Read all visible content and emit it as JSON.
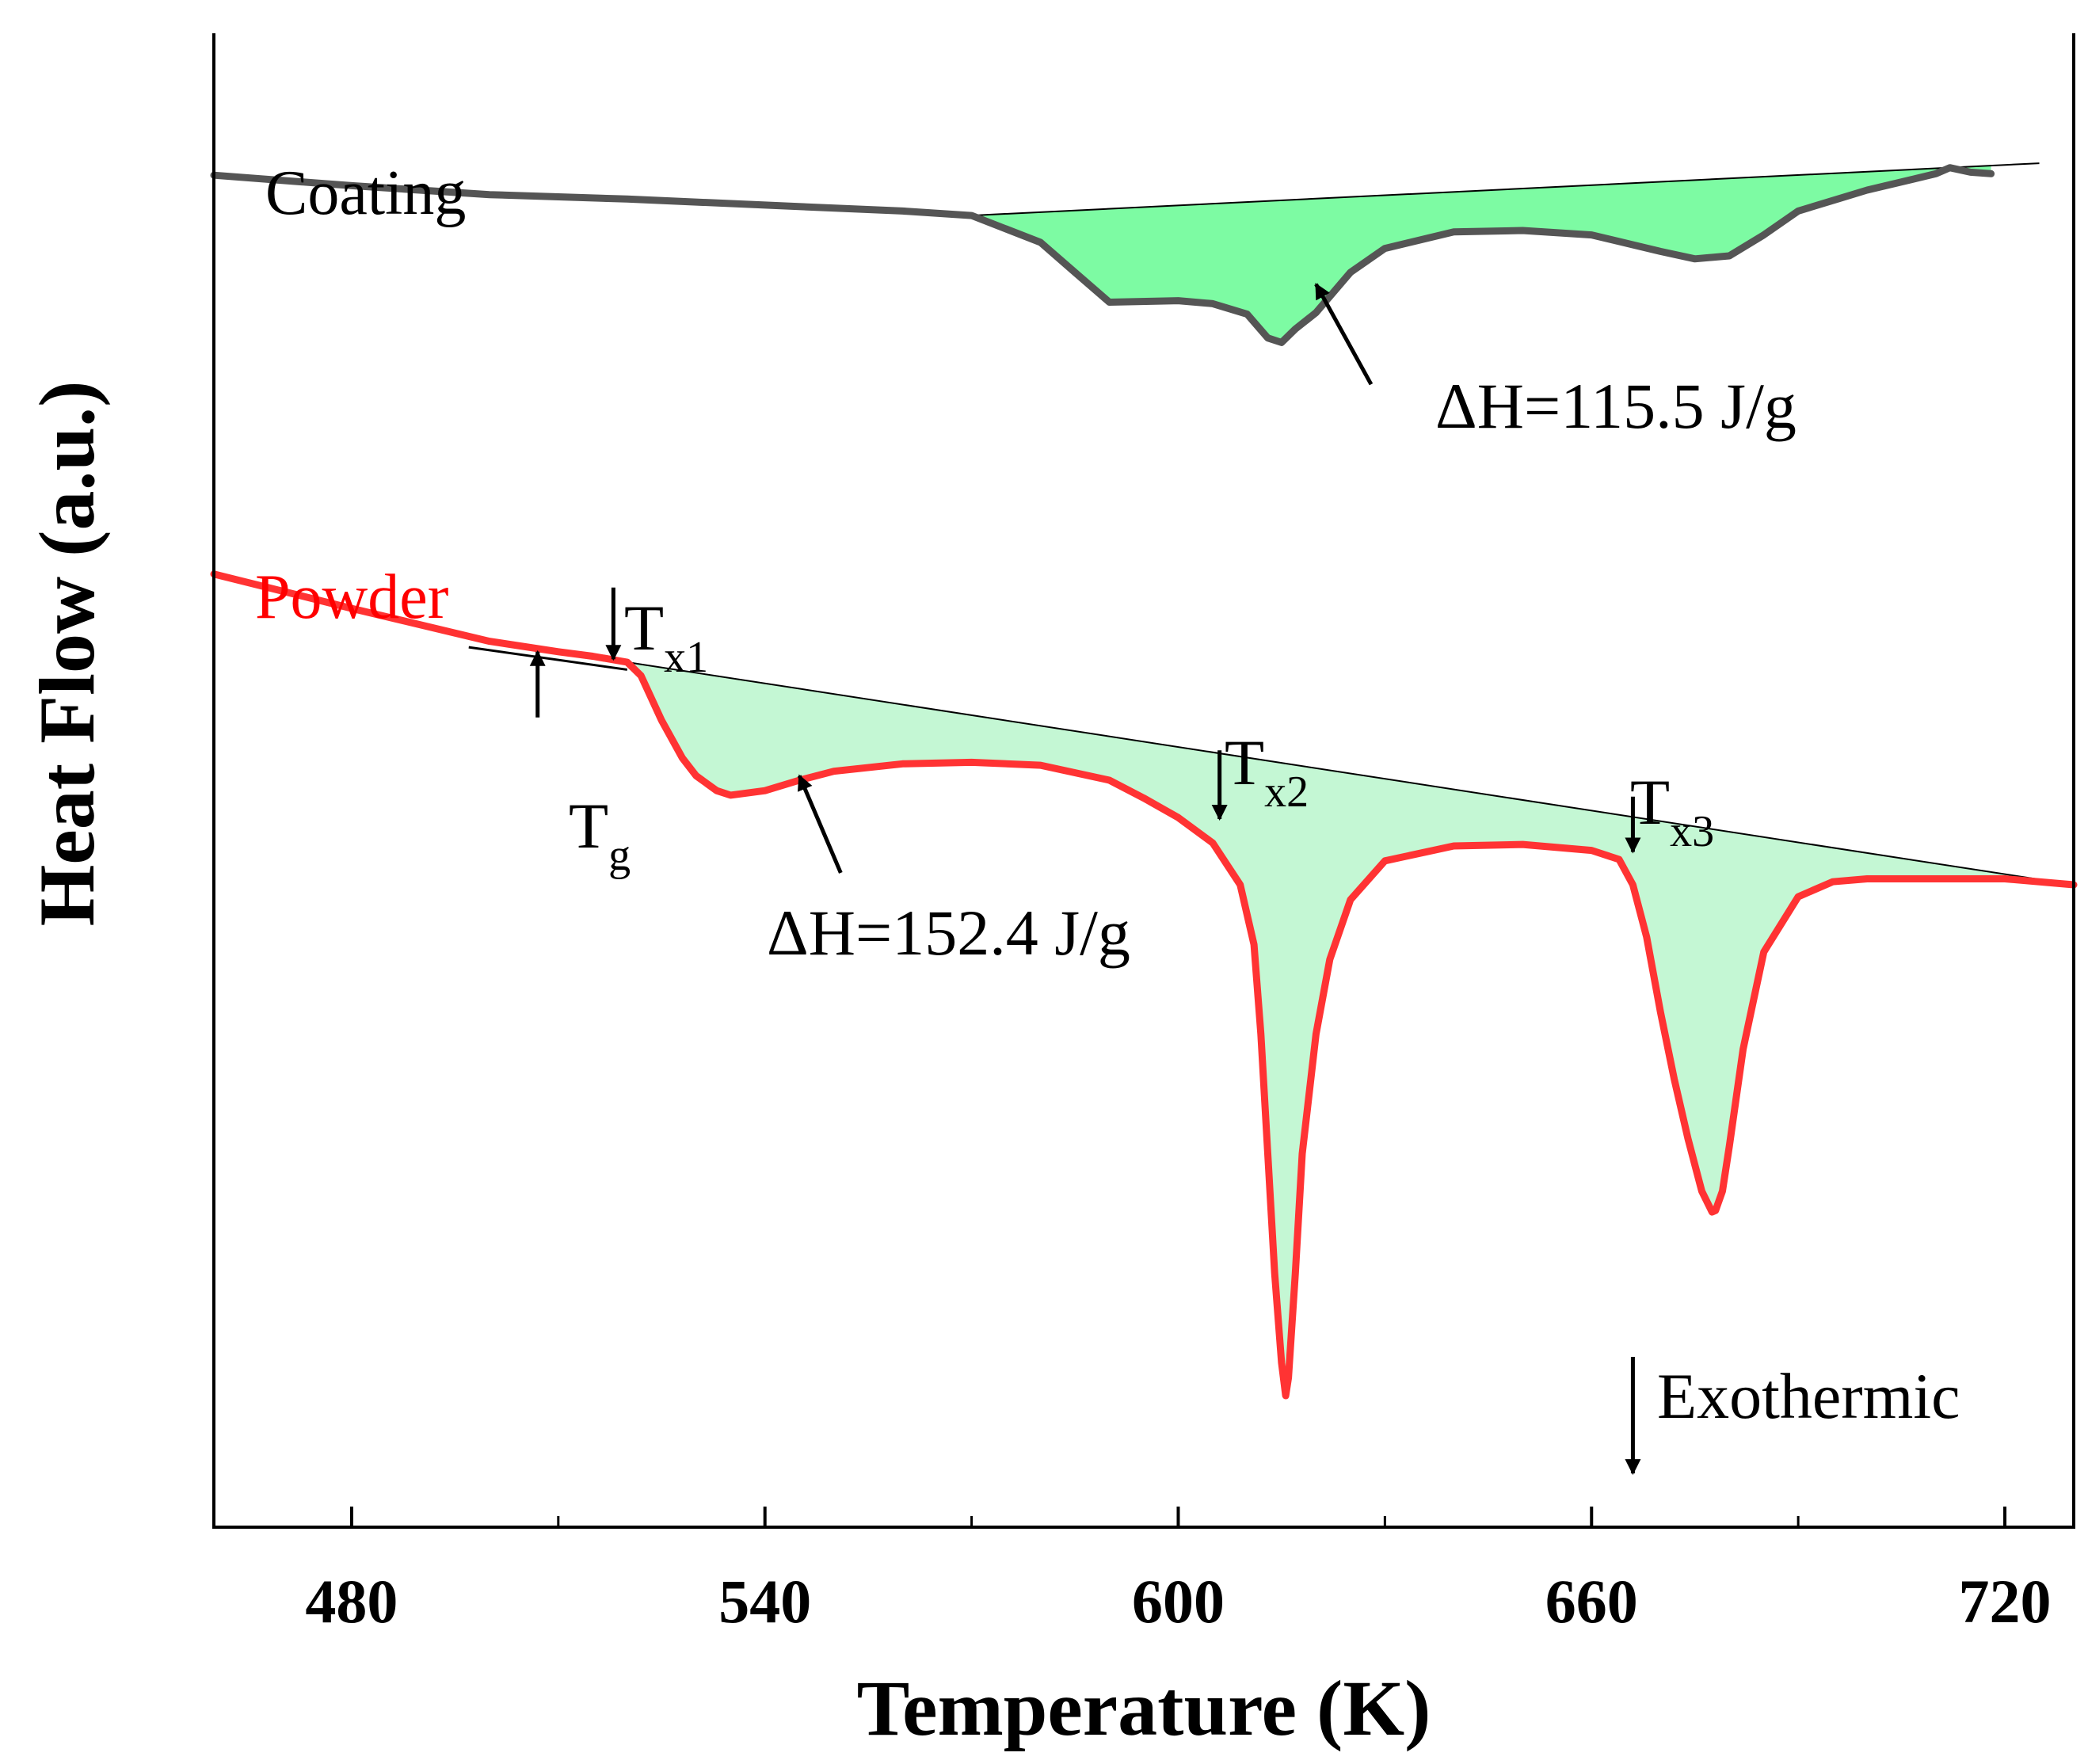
{
  "chart_data": {
    "type": "line",
    "title": "",
    "xlabel": "Temperature (K)",
    "ylabel": "Heat Flow (a.u.)",
    "xlim": [
      460,
      730
    ],
    "ylim": [
      0,
      100
    ],
    "xticks": [
      480,
      540,
      600,
      660,
      720
    ],
    "minor_xticks": [
      510,
      570,
      630,
      690
    ],
    "grid": false,
    "colors": {
      "coating": "#555555",
      "powder": "#ff3333",
      "fill": "#7dfba3",
      "powder_fill": "#c4f7d4",
      "text": "#000000",
      "powder_text": "#ff0000"
    },
    "series": [
      {
        "name": "Coating",
        "label": "Coating",
        "x": [
          460,
          480,
          500,
          520,
          540,
          560,
          570,
          580,
          585,
          590,
          600,
          605,
          610,
          613,
          615,
          617,
          620,
          625,
          630,
          640,
          650,
          660,
          670,
          675,
          680,
          685,
          690,
          700,
          710,
          712,
          715,
          718
        ],
        "y": [
          90.5,
          89.8,
          89.2,
          88.9,
          88.5,
          88.1,
          87.8,
          86.0,
          84.0,
          82.0,
          82.1,
          81.9,
          81.2,
          79.6,
          79.3,
          80.2,
          81.3,
          84.0,
          85.6,
          86.7,
          86.8,
          86.5,
          85.4,
          84.9,
          85.1,
          86.5,
          88.1,
          89.5,
          90.6,
          91.0,
          90.7,
          90.6
        ]
      },
      {
        "name": "Powder",
        "label": "Powder",
        "x": [
          460,
          480,
          500,
          510,
          515,
          520,
          522,
          525,
          528,
          530,
          533,
          535,
          540,
          545,
          550,
          560,
          570,
          580,
          590,
          595,
          600,
          605,
          609,
          611,
          612,
          613,
          614,
          615,
          615.6,
          616,
          617,
          618,
          620,
          622,
          625,
          630,
          640,
          650,
          660,
          664,
          666,
          668,
          670,
          672,
          674,
          676,
          677.5,
          678,
          679,
          680,
          682,
          685,
          690,
          695,
          700,
          710,
          720,
          730
        ],
        "y": [
          63.8,
          61.5,
          59.3,
          58.6,
          58.3,
          57.9,
          57.0,
          54.0,
          51.5,
          50.3,
          49.3,
          49.0,
          49.3,
          50.0,
          50.6,
          51.1,
          51.2,
          51.0,
          50.0,
          48.8,
          47.5,
          45.8,
          43.0,
          39.0,
          33.0,
          25.0,
          17.0,
          11.0,
          8.8,
          10.0,
          17.0,
          25.0,
          33.0,
          38.0,
          42.0,
          44.6,
          45.6,
          45.7,
          45.3,
          44.7,
          43.0,
          39.5,
          34.5,
          30.0,
          26.0,
          22.5,
          21.1,
          21.2,
          22.5,
          25.5,
          32.0,
          38.5,
          42.2,
          43.2,
          43.4,
          43.4,
          43.4,
          43.0
        ]
      }
    ],
    "baselines": [
      {
        "name": "Coating baseline",
        "x": [
          570,
          725
        ],
        "y": [
          87.8,
          91.3
        ]
      },
      {
        "name": "Powder baseline",
        "x": [
          520,
          730
        ],
        "y": [
          57.9,
          43.0
        ]
      },
      {
        "name": "Tg tangent",
        "x": [
          497,
          520
        ],
        "y": [
          58.9,
          57.4
        ]
      }
    ],
    "annotations": [
      {
        "id": "dh_coating",
        "text": "ΔH=115.5 J/g",
        "arrow_from": [
          628,
          76.5
        ],
        "arrow_to": [
          620,
          83.2
        ]
      },
      {
        "id": "dh_powder",
        "text": "ΔH=152.4 J/g",
        "arrow_from": [
          551,
          43.8
        ],
        "arrow_to": [
          545,
          50.3
        ]
      },
      {
        "id": "tx1",
        "text": "T",
        "subscript": "x1",
        "arrow_from": [
          518,
          62.9
        ],
        "arrow_to": [
          518,
          58.1
        ]
      },
      {
        "id": "tg",
        "text": "T",
        "subscript": "g",
        "arrow_from": [
          507,
          54.2
        ],
        "arrow_to": [
          507,
          58.6
        ]
      },
      {
        "id": "tx2",
        "text": "T",
        "subscript": "x2",
        "arrow_from": [
          606,
          52.0
        ],
        "arrow_to": [
          606,
          47.4
        ]
      },
      {
        "id": "tx3",
        "text": "T",
        "subscript": "x3",
        "arrow_from": [
          666,
          48.9
        ],
        "arrow_to": [
          666,
          45.2
        ]
      },
      {
        "id": "exo",
        "text": "Exothermic",
        "arrow_from": [
          666,
          11.4
        ],
        "arrow_to": [
          666,
          3.6
        ]
      }
    ]
  }
}
